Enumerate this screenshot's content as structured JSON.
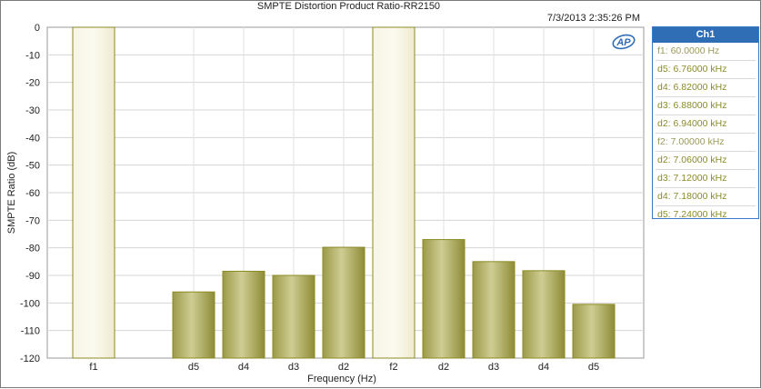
{
  "chart_data": {
    "type": "bar",
    "title": "SMPTE Distortion Product Ratio-RR2150",
    "timestamp": "7/3/2013 2:35:26 PM",
    "xlabel": "Frequency (Hz)",
    "ylabel": "SMPTE Ratio (dB)",
    "ylim": [
      -120,
      0
    ],
    "yticks": [
      0,
      -10,
      -20,
      -30,
      -40,
      -50,
      -60,
      -70,
      -80,
      -90,
      -100,
      -110,
      -120
    ],
    "grid": true,
    "categories": [
      "f1",
      "d5",
      "d4",
      "d3",
      "d2",
      "f2",
      "d2",
      "d3",
      "d4",
      "d5"
    ],
    "values": [
      0,
      -96,
      -88.5,
      -90,
      -79.8,
      0,
      -77,
      -85,
      -88.3,
      -100.5
    ],
    "fundamental_color": "#f3f0d8",
    "product_color": "#a8a65a",
    "bar_edge_color": "#8c8a22",
    "legend": {
      "header": "Ch1",
      "entries": [
        "f1: 60.0000 Hz",
        "d5: 6.76000 kHz",
        "d4: 6.82000 kHz",
        "d3: 6.88000 kHz",
        "d2: 6.94000 kHz",
        "f2: 7.00000 kHz",
        "d2: 7.06000 kHz",
        "d3: 7.12000 kHz",
        "d4: 7.18000 kHz",
        "d5: 7.24000 kHz"
      ]
    },
    "logo": "AP"
  }
}
